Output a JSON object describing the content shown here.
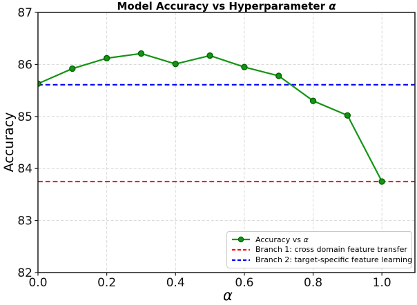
{
  "figure": {
    "title_main": "Model Accuracy vs Hyperparameter ",
    "title_alpha": "α",
    "ylabel": "Accuracy",
    "xlabel_alpha": "α"
  },
  "legend": {
    "accuracy_label_main": "Accuracy vs ",
    "accuracy_label_alpha": "α",
    "branch1_label": "Branch 1: cross domain feature transfer",
    "branch2_label": "Branch 2: target-specific feature learning"
  },
  "colors": {
    "accuracy_line": "#149414",
    "marker_edge": "#006400",
    "branch1_line": "#ff0000",
    "branch2_line": "#0000ff",
    "grid": "#d8d8d8",
    "spine": "#1a1a1a"
  },
  "chart_data": {
    "type": "line",
    "title": "Model Accuracy vs Hyperparameter α",
    "xlabel": "α",
    "ylabel": "Accuracy",
    "xlim": [
      0,
      1.096
    ],
    "ylim": [
      82,
      87
    ],
    "xticks": [
      "0.0",
      "0.2",
      "0.4",
      "0.6",
      "0.8",
      "1.0"
    ],
    "xtick_values": [
      0.0,
      0.2,
      0.4,
      0.6,
      0.8,
      1.0
    ],
    "yticks": [
      "82",
      "83",
      "84",
      "85",
      "86",
      "87"
    ],
    "ytick_values": [
      82,
      83,
      84,
      85,
      86,
      87
    ],
    "grid": true,
    "legend_position": "lower right",
    "series": [
      {
        "name": "Accuracy vs α",
        "type": "line+marker",
        "color": "#149414",
        "marker": "o",
        "linestyle": "solid",
        "x": [
          0.0,
          0.1,
          0.2,
          0.3,
          0.4,
          0.5,
          0.6,
          0.7,
          0.8,
          0.9,
          1.0
        ],
        "y": [
          85.63,
          85.92,
          86.12,
          86.21,
          86.01,
          86.17,
          85.95,
          85.78,
          85.3,
          85.02,
          83.75
        ]
      },
      {
        "name": "Branch 1: cross domain feature transfer",
        "type": "hline",
        "color": "#ff0000",
        "linestyle": "dashed",
        "y": 83.75
      },
      {
        "name": "Branch 2: target-specific feature learning",
        "type": "hline",
        "color": "#0000ff",
        "linestyle": "dashed",
        "y": 85.61
      }
    ]
  }
}
